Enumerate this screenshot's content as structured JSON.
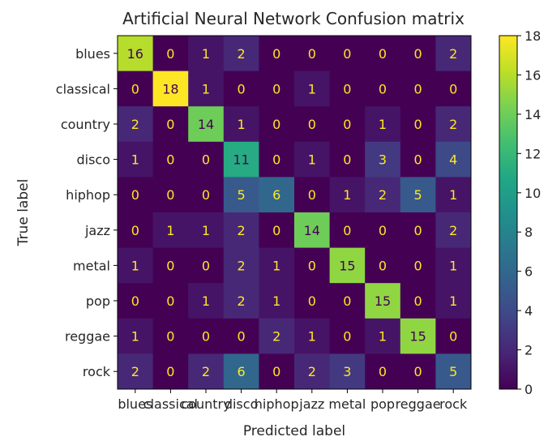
{
  "chart_data": {
    "type": "heatmap",
    "title": "Artificial Neural Network Confusion matrix",
    "xlabel": "Predicted label",
    "ylabel": "True label",
    "labels": [
      "blues",
      "classical",
      "country",
      "disco",
      "hiphop",
      "jazz",
      "metal",
      "pop",
      "reggae",
      "rock"
    ],
    "matrix": [
      [
        16,
        0,
        1,
        2,
        0,
        0,
        0,
        0,
        0,
        2
      ],
      [
        0,
        18,
        1,
        0,
        0,
        1,
        0,
        0,
        0,
        0
      ],
      [
        2,
        0,
        14,
        1,
        0,
        0,
        0,
        1,
        0,
        2
      ],
      [
        1,
        0,
        0,
        11,
        0,
        1,
        0,
        3,
        0,
        4
      ],
      [
        0,
        0,
        0,
        5,
        6,
        0,
        1,
        2,
        5,
        1
      ],
      [
        0,
        1,
        1,
        2,
        0,
        14,
        0,
        0,
        0,
        2
      ],
      [
        1,
        0,
        0,
        2,
        1,
        0,
        15,
        0,
        0,
        1
      ],
      [
        0,
        0,
        1,
        2,
        1,
        0,
        0,
        15,
        0,
        1
      ],
      [
        1,
        0,
        0,
        0,
        2,
        1,
        0,
        1,
        15,
        0
      ],
      [
        2,
        0,
        2,
        6,
        0,
        2,
        3,
        0,
        0,
        5
      ]
    ],
    "colormap": "viridis",
    "vmin": 0,
    "vmax": 18,
    "colorbar_ticks": [
      0,
      2,
      4,
      6,
      8,
      10,
      12,
      14,
      16,
      18
    ],
    "text_color_dark_cells": "#fde725",
    "text_color_light_cells": "#440154"
  }
}
